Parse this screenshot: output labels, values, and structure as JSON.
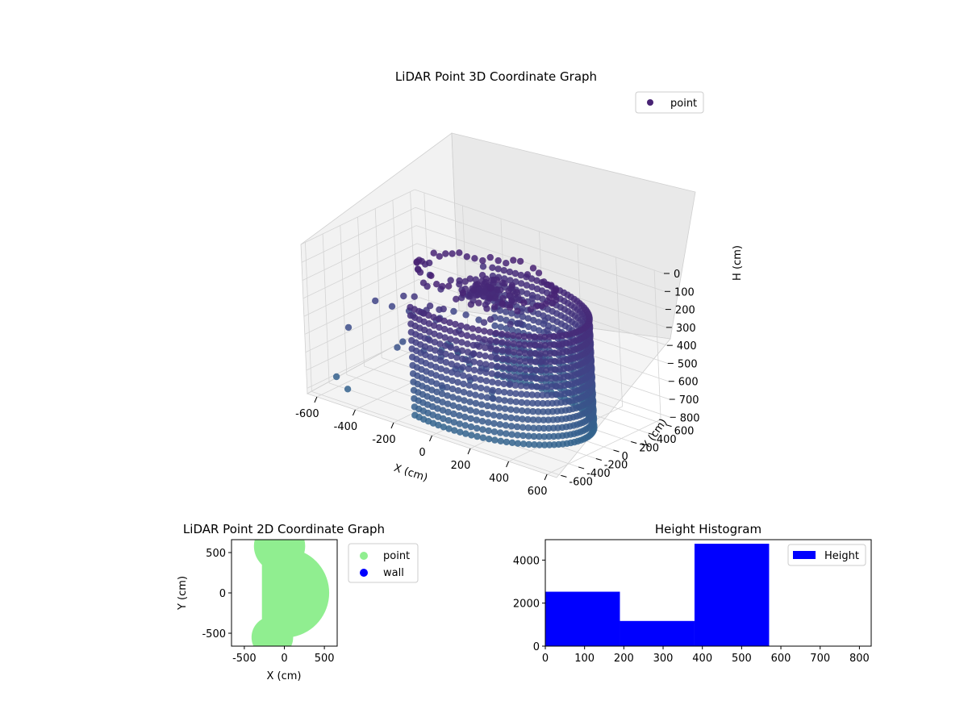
{
  "chart_data": [
    {
      "type": "scatter",
      "projection": "3d",
      "title": "LiDAR Point 3D Coordinate Graph",
      "xlabel": "X (cm)",
      "ylabel": "Y (cm)",
      "zlabel": "H (cm)",
      "xlim": [
        -650,
        650
      ],
      "ylim": [
        -650,
        650
      ],
      "zlim": [
        0,
        830
      ],
      "z_inverted": true,
      "xticks": [
        -600,
        -400,
        -200,
        0,
        200,
        400,
        600
      ],
      "yticks": [
        -600,
        -400,
        -200,
        0,
        200,
        400,
        600
      ],
      "zticks": [
        0,
        100,
        200,
        300,
        400,
        500,
        600,
        700,
        800
      ],
      "grid": true,
      "legend": {
        "position": "top-right",
        "entries": [
          {
            "label": "point",
            "color": "#482374"
          }
        ]
      },
      "colormap": "viridis",
      "series": [
        {
          "name": "point",
          "shapes": [
            {
              "kind": "wall-arc",
              "center": [
                0,
                0
              ],
              "radius": 500,
              "angle_range_deg": [
                -110,
                110
              ],
              "h_range": [
                220,
                820
              ]
            },
            {
              "kind": "ceiling-ring",
              "center": [
                -40,
                120
              ],
              "radius": 180,
              "h_range": [
                180,
                260
              ]
            },
            {
              "kind": "ring",
              "center": [
                -40,
                120
              ],
              "radius": 330,
              "h_range": [
                120,
                200
              ]
            },
            {
              "kind": "scattered",
              "h_range": [
                300,
                700
              ]
            }
          ],
          "outliers": [
            {
              "x": -630,
              "y": -200,
              "h": 560
            },
            {
              "x": -600,
              "y": 50,
              "h": 460
            },
            {
              "x": -560,
              "y": 150,
              "h": 500
            },
            {
              "x": -480,
              "y": 420,
              "h": 360
            },
            {
              "x": -610,
              "y": -400,
              "h": 780
            },
            {
              "x": -520,
              "y": -470,
              "h": 800
            },
            {
              "x": -300,
              "y": 640,
              "h": 300
            }
          ]
        }
      ]
    },
    {
      "type": "scatter",
      "title": "LiDAR Point 2D Coordinate Graph",
      "xlabel": "X (cm)",
      "ylabel": "Y (cm)",
      "xlim": [
        -660,
        660
      ],
      "ylim": [
        -660,
        660
      ],
      "xticks": [
        -500,
        0,
        500
      ],
      "yticks": [
        -500,
        0,
        500
      ],
      "legend": {
        "position": "outside-right",
        "entries": [
          {
            "label": "point",
            "color": "#90ee90"
          },
          {
            "label": "wall",
            "color": "#0000ff"
          }
        ]
      },
      "series": [
        {
          "name": "point",
          "color": "#90ee90",
          "shapes": [
            {
              "kind": "filled-half-disk",
              "center": [
                0,
                0
              ],
              "radius": 560,
              "angle_range_deg": [
                -120,
                120
              ]
            },
            {
              "kind": "filled-disk",
              "center": [
                -60,
                580
              ],
              "radius": 320
            },
            {
              "kind": "filled-disk",
              "center": [
                -150,
                -550
              ],
              "radius": 260
            }
          ]
        },
        {
          "name": "wall",
          "color": "#0000ff",
          "points": []
        }
      ]
    },
    {
      "type": "bar",
      "subtype": "histogram",
      "title": "Height Histogram",
      "xlim": [
        0,
        830
      ],
      "ylim": [
        0,
        4950
      ],
      "xticks": [
        0,
        100,
        200,
        300,
        400,
        500,
        600,
        700,
        800
      ],
      "yticks": [
        0,
        2000,
        4000
      ],
      "legend": {
        "position": "top-right",
        "entries": [
          {
            "label": "Height",
            "color": "#0000ff"
          }
        ]
      },
      "series": [
        {
          "name": "Height",
          "color": "#0000ff",
          "bins": [
            {
              "x0": 0,
              "x1": 190,
              "count": 2530
            },
            {
              "x0": 190,
              "x1": 380,
              "count": 1170
            },
            {
              "x0": 380,
              "x1": 570,
              "count": 4760
            },
            {
              "x0": 570,
              "x1": 760,
              "count": 0
            }
          ]
        }
      ]
    }
  ]
}
